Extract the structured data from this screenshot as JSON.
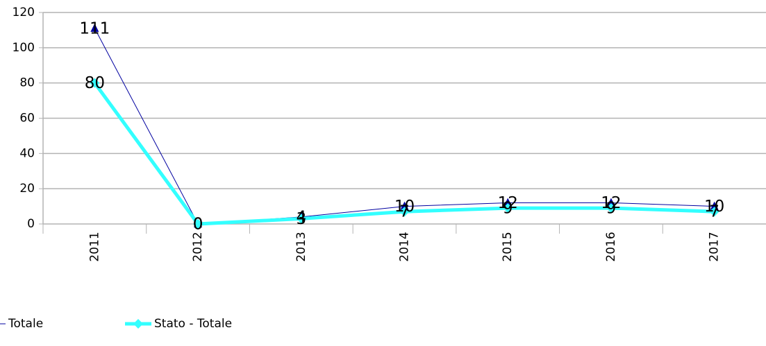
{
  "chart_data": {
    "type": "line",
    "categories": [
      "2011",
      "2012",
      "2013",
      "2014",
      "2015",
      "2016",
      "2017"
    ],
    "series": [
      {
        "name": "Totale",
        "color": "#0000a0",
        "marker": "triangle",
        "values": [
          111,
          0,
          4,
          10,
          12,
          12,
          10
        ]
      },
      {
        "name": "Stato - Totale",
        "color": "#33ffff",
        "marker": "diamond",
        "values": [
          80,
          0,
          3,
          7,
          9,
          9,
          7
        ]
      }
    ],
    "ylim": [
      0,
      120
    ],
    "yticks": [
      0,
      20,
      40,
      60,
      80,
      100,
      120
    ],
    "grid": true,
    "legend": "bottom"
  }
}
